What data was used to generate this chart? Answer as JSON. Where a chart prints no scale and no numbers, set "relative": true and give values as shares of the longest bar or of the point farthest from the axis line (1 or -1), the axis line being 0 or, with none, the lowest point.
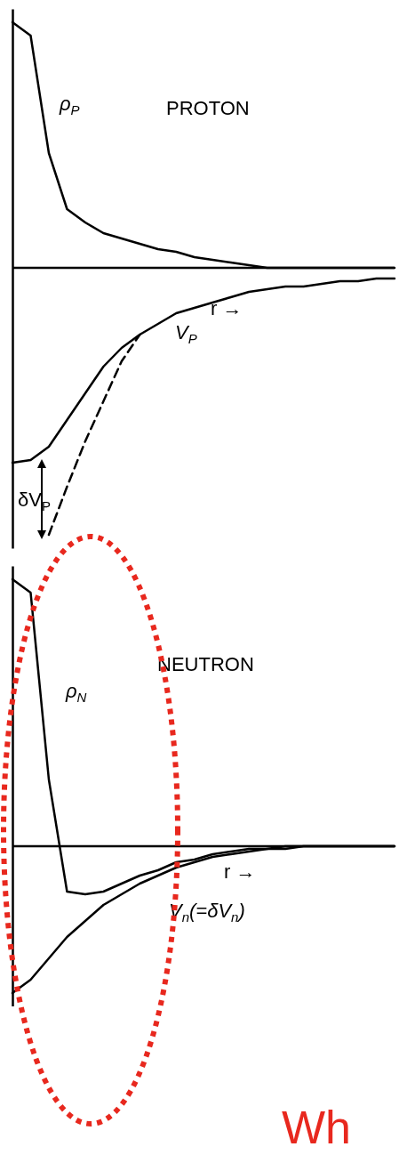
{
  "chart_data": [
    {
      "type": "line",
      "title": "PROTON",
      "xlabel": "r →",
      "relative": true,
      "categories": [
        null,
        null,
        null,
        null,
        null,
        null,
        null,
        null,
        null,
        null,
        null,
        null,
        null,
        null,
        null,
        null,
        null,
        null,
        null,
        null,
        null,
        null
      ],
      "series": [
        {
          "name": "ρ$_{P}$",
          "color": "#000000",
          "values": [
            0.92,
            0.87,
            0.43,
            0.22,
            0.17,
            0.13,
            0.11,
            0.09,
            0.07,
            0.06,
            0.04,
            0.03,
            0.02,
            0.01,
            0,
            0,
            0,
            0,
            0,
            0,
            0,
            0
          ]
        },
        {
          "name": "V$_{P}$",
          "color": "#000000",
          "values": [
            -0.73,
            -0.72,
            -0.67,
            -0.57,
            -0.47,
            -0.37,
            -0.3,
            -0.25,
            -0.21,
            -0.17,
            -0.15,
            -0.13,
            -0.11,
            -0.09,
            -0.08,
            -0.07,
            -0.07,
            -0.06,
            -0.05,
            -0.05,
            -0.04,
            -0.04
          ]
        },
        {
          "color": "#000000",
          "line_style": "dashed",
          "values": [
            null,
            null,
            -1,
            -0.82,
            -0.65,
            -0.5,
            -0.35,
            -0.25,
            null,
            null,
            null,
            null,
            null,
            null,
            null,
            null,
            null,
            null,
            null,
            null,
            null,
            null
          ]
        }
      ],
      "annotations": [
        "δV$_{P}$"
      ]
    },
    {
      "type": "line",
      "title": "NEUTRON",
      "xlabel": "r →",
      "relative": true,
      "categories": [
        null,
        null,
        null,
        null,
        null,
        null,
        null,
        null,
        null,
        null,
        null,
        null,
        null,
        null,
        null,
        null,
        null,
        null,
        null,
        null,
        null,
        null
      ],
      "series": [
        {
          "name": "ρ$_{N}$",
          "color": "#000000",
          "values": [
            1,
            0.95,
            0.25,
            -0.17,
            -0.18,
            -0.17,
            -0.14,
            -0.11,
            -0.09,
            -0.06,
            -0.05,
            -0.03,
            -0.02,
            -0.01,
            -0.01,
            0,
            0,
            0,
            0,
            0,
            0,
            0
          ]
        },
        {
          "name": "V$_{n}$(=δV$_{n}$)",
          "color": "#000000",
          "values": [
            -0.55,
            -0.5,
            -0.42,
            -0.34,
            -0.28,
            -0.22,
            -0.18,
            -0.14,
            -0.11,
            -0.08,
            -0.06,
            -0.04,
            -0.03,
            -0.02,
            -0.01,
            -0.01,
            0,
            0,
            0,
            0,
            0,
            0
          ]
        }
      ],
      "annotations": [
        "Wh"
      ]
    }
  ]
}
